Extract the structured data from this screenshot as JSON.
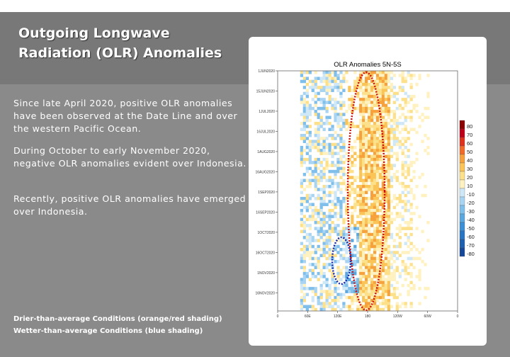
{
  "slide": {
    "title_line1": "Outgoing Longwave",
    "title_line2": "Radiation (OLR) Anomalies",
    "paragraphs": [
      "Since late April 2020, positive OLR anomalies have been observed at the Date Line and over the western Pacific Ocean.",
      "During October to early November 2020, negative OLR anomalies evident over Indonesia.",
      "Recently, positive OLR anomalies have emerged over Indonesia."
    ],
    "notes": [
      "Drier-than-average Conditions (orange/red shading)",
      "Wetter-than-average Conditions (blue shading)"
    ]
  },
  "chart_data": {
    "type": "heatmap",
    "title": "OLR Anomalies 5N-5S",
    "y_ticks": [
      "1JUN2020",
      "15JUN2020",
      "1JUL2020",
      "16JUL2020",
      "1AUG2020",
      "16AUG2020",
      "1SEP2020",
      "16SEP2020",
      "1OCT2020",
      "16OCT2020",
      "1NOV2020",
      "16NOV2020"
    ],
    "x_ticks": [
      "0",
      "60E",
      "120E",
      "180",
      "120W",
      "60W",
      "0"
    ],
    "colorbar_levels": [
      "80",
      "70",
      "60",
      "50",
      "40",
      "30",
      "20",
      "10",
      "-10",
      "-20",
      "-30",
      "-40",
      "-50",
      "-60",
      "-70",
      "-80"
    ],
    "colorbar_colors": [
      "#8b0000",
      "#c0001a",
      "#e0301e",
      "#f26a2a",
      "#f7a13c",
      "#fbc456",
      "#fde08a",
      "#fff2c0",
      "#cfe8f7",
      "#a8d4f2",
      "#7fbfea",
      "#5aa7e0",
      "#3b8fd6",
      "#2a76c4",
      "#1f5fb0",
      "#16489a"
    ],
    "annotations": [
      {
        "name": "red-oval",
        "color": "#cc1111",
        "label": "positive anomalies near Date Line"
      },
      {
        "name": "blue-oval",
        "color": "#1a2aa8",
        "label": "negative anomalies over Indonesia"
      }
    ]
  }
}
